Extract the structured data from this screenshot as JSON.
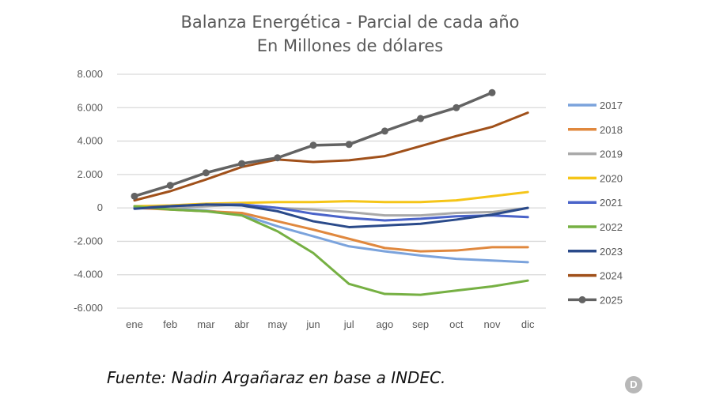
{
  "chart_data": {
    "type": "line",
    "title": "Balanza Energética - Parcial de cada año",
    "subtitle": "En Millones de dólares",
    "categories": [
      "ene",
      "feb",
      "mar",
      "abr",
      "may",
      "jun",
      "jul",
      "ago",
      "sep",
      "oct",
      "nov",
      "dic"
    ],
    "ylim": [
      -6000,
      8000
    ],
    "yticks": [
      8000,
      6000,
      4000,
      2000,
      0,
      -2000,
      -4000,
      -6000
    ],
    "ytick_labels": [
      "8.000",
      "6.000",
      "4.000",
      "2.000",
      "0",
      "-2.000",
      "-4.000",
      "-6.000"
    ],
    "grid": true,
    "legend": "right",
    "series": [
      {
        "name": "2017",
        "color": "#7ba3dc",
        "markers": false,
        "values": [
          0,
          -50,
          -150,
          -400,
          -1100,
          -1700,
          -2300,
          -2600,
          -2850,
          -3050,
          -3150,
          -3250
        ]
      },
      {
        "name": "2018",
        "color": "#e0883e",
        "markers": false,
        "values": [
          0,
          -100,
          -200,
          -300,
          -800,
          -1300,
          -1850,
          -2400,
          -2600,
          -2550,
          -2350,
          -2350
        ]
      },
      {
        "name": "2019",
        "color": "#a9a9a9",
        "markers": false,
        "values": [
          0,
          0,
          100,
          200,
          0,
          -100,
          -250,
          -450,
          -450,
          -300,
          -250,
          0
        ]
      },
      {
        "name": "2020",
        "color": "#f5c518",
        "markers": false,
        "values": [
          100,
          150,
          250,
          300,
          350,
          350,
          400,
          350,
          350,
          450,
          700,
          950
        ]
      },
      {
        "name": "2021",
        "color": "#4a63c9",
        "markers": false,
        "values": [
          0,
          100,
          200,
          200,
          0,
          -350,
          -600,
          -750,
          -650,
          -500,
          -450,
          -550
        ]
      },
      {
        "name": "2022",
        "color": "#76b043",
        "markers": false,
        "values": [
          100,
          -100,
          -200,
          -450,
          -1400,
          -2700,
          -4550,
          -5150,
          -5200,
          -4950,
          -4700,
          -4350
        ]
      },
      {
        "name": "2023",
        "color": "#2a4a8a",
        "markers": false,
        "values": [
          -50,
          100,
          200,
          150,
          -200,
          -800,
          -1150,
          -1050,
          -950,
          -700,
          -400,
          0
        ]
      },
      {
        "name": "2024",
        "color": "#a0501a",
        "markers": false,
        "values": [
          450,
          1000,
          1700,
          2450,
          2900,
          2750,
          2850,
          3100,
          3700,
          4300,
          4850,
          5700
        ]
      },
      {
        "name": "2025",
        "color": "#636363",
        "markers": true,
        "values": [
          700,
          1350,
          2100,
          2650,
          3000,
          3750,
          3800,
          4600,
          5350,
          6000,
          6900,
          null
        ]
      }
    ]
  },
  "source": "Fuente: Nadin Argañaraz en base a INDEC.",
  "logo_text": "D"
}
